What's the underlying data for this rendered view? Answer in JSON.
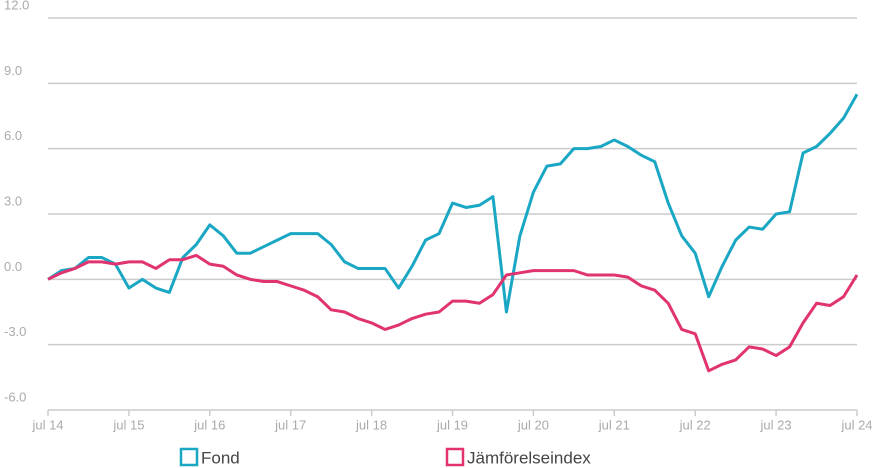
{
  "chart_data": {
    "type": "line",
    "categories": [
      "jul 14",
      null,
      null,
      null,
      null,
      null,
      "jul 15",
      null,
      null,
      null,
      null,
      null,
      "jul 16",
      null,
      null,
      null,
      null,
      null,
      "jul 17",
      null,
      null,
      null,
      null,
      null,
      "jul 18",
      null,
      null,
      null,
      null,
      null,
      "jul 19",
      null,
      null,
      null,
      null,
      null,
      "jul 20",
      null,
      null,
      null,
      null,
      null,
      "jul 21",
      null,
      null,
      null,
      null,
      null,
      "jul 22",
      null,
      null,
      null,
      null,
      null,
      "jul 23",
      null,
      null,
      null,
      null,
      null,
      "jul 24"
    ],
    "series": [
      {
        "name": "Fond",
        "color": "#1aa7c4",
        "values": [
          0.0,
          0.4,
          0.5,
          1.0,
          1.0,
          0.7,
          -0.4,
          0.0,
          -0.4,
          -0.6,
          1.0,
          1.6,
          2.5,
          2.0,
          1.2,
          1.2,
          1.5,
          1.8,
          2.1,
          2.1,
          2.1,
          1.6,
          0.8,
          0.5,
          0.5,
          0.5,
          -0.4,
          0.6,
          1.8,
          2.1,
          3.5,
          3.3,
          3.4,
          3.8,
          -1.5,
          2.0,
          4.0,
          5.2,
          5.3,
          6.0,
          6.0,
          6.1,
          6.4,
          6.1,
          5.7,
          5.4,
          3.5,
          2.0,
          1.2,
          -0.8,
          0.6,
          1.8,
          2.4,
          2.3,
          3.0,
          3.1,
          5.8,
          6.1,
          6.7,
          7.4,
          8.5
        ]
      },
      {
        "name": "Jämförelseindex",
        "color": "#e0336f",
        "values": [
          0.0,
          0.3,
          0.5,
          0.8,
          0.8,
          0.7,
          0.8,
          0.8,
          0.5,
          0.9,
          0.9,
          1.1,
          0.7,
          0.6,
          0.2,
          0.0,
          -0.1,
          -0.1,
          -0.3,
          -0.5,
          -0.8,
          -1.4,
          -1.5,
          -1.8,
          -2.0,
          -2.3,
          -2.1,
          -1.8,
          -1.6,
          -1.5,
          -1.0,
          -1.0,
          -1.1,
          -0.7,
          0.2,
          0.3,
          0.4,
          0.4,
          0.4,
          0.4,
          0.2,
          0.2,
          0.2,
          0.1,
          -0.3,
          -0.5,
          -1.1,
          -2.3,
          -2.5,
          -4.2,
          -3.9,
          -3.7,
          -3.1,
          -3.2,
          -3.5,
          -3.1,
          -2.0,
          -1.1,
          -1.2,
          -0.8,
          0.2
        ]
      }
    ],
    "ylim": [
      -6,
      12
    ],
    "yticks": [
      {
        "value": -6,
        "label": "-6.0"
      },
      {
        "value": -3,
        "label": "-3.0"
      },
      {
        "value": 0,
        "label": "0.0"
      },
      {
        "value": 3,
        "label": "3.0"
      },
      {
        "value": 6,
        "label": "6.0"
      },
      {
        "value": 9,
        "label": "9.0"
      },
      {
        "value": 12,
        "label": "12.0"
      }
    ],
    "grid": true
  }
}
